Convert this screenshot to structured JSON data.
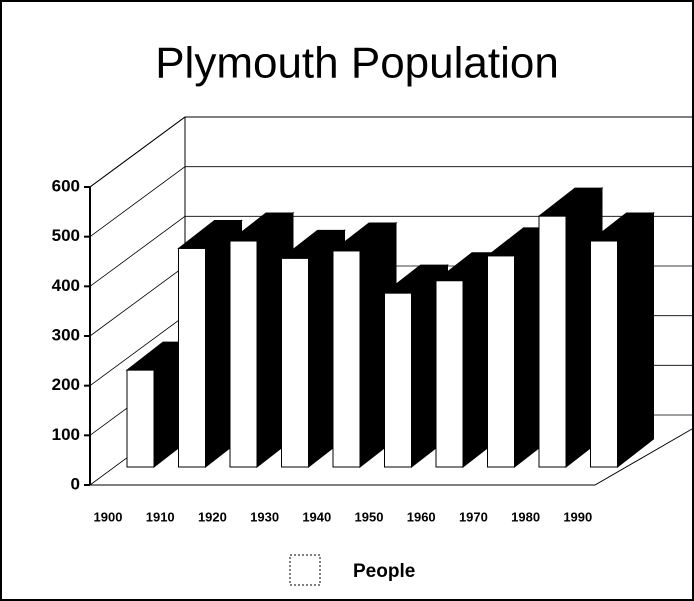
{
  "chart_data": {
    "type": "bar3d",
    "title": "Plymouth Population",
    "categories": [
      "1900",
      "1910",
      "1920",
      "1930",
      "1940",
      "1950",
      "1960",
      "1970",
      "1980",
      "1990"
    ],
    "series": [
      {
        "name": "People",
        "color": "#ffffff",
        "values": [
          195,
          440,
          455,
          420,
          435,
          350,
          375,
          425,
          505,
          455
        ]
      }
    ],
    "ylim": [
      0,
      600
    ],
    "yticks": [
      0,
      100,
      200,
      300,
      400,
      500,
      600
    ],
    "grid": true,
    "legend": "bottom"
  }
}
